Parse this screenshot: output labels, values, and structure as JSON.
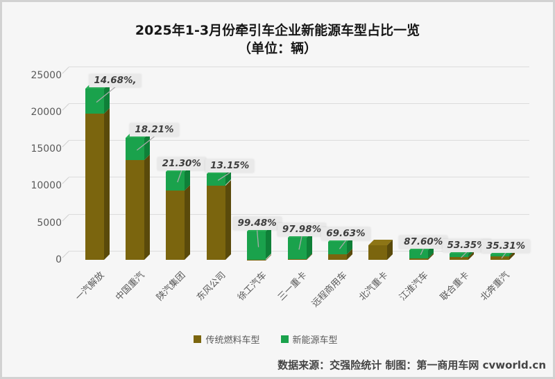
{
  "title": {
    "line1": "2025年1-3月份牵引车企业新能源车型占比一览",
    "line2": "（单位：辆）"
  },
  "chart_data": {
    "type": "bar",
    "stacked": true,
    "style": "3d-column",
    "unit": "辆",
    "categories": [
      "一汽解放",
      "中国重汽",
      "陕汽集团",
      "东风公司",
      "徐工汽车",
      "三一重卡",
      "远程商用车",
      "北汽重卡",
      "江淮汽车",
      "联合重卡",
      "北奔重汽"
    ],
    "series": [
      {
        "name": "传统燃料车型",
        "values": [
          19794,
          13496,
          9365,
          10075,
          20,
          61,
          729,
          1950,
          161,
          397,
          492
        ]
      },
      {
        "name": "新能源车型",
        "values": [
          3406,
          3004,
          2535,
          1525,
          3780,
          2939,
          1671,
          0,
          1139,
          453,
          268
        ]
      }
    ],
    "totals": [
      23200,
      16500,
      11900,
      11600,
      3800,
      3000,
      2400,
      1950,
      1300,
      850,
      760
    ],
    "percent_labels": [
      "14.68%,",
      "18.21%",
      "21.30%",
      "13.15%",
      "99.48%",
      "97.98%",
      "69.63%",
      null,
      "87.60%",
      "53.35%",
      "35.31%"
    ],
    "ylim": [
      0,
      25000
    ],
    "yticks": [
      0,
      5000,
      10000,
      15000,
      20000,
      25000
    ],
    "grid": true,
    "legend_position": "bottom"
  },
  "legend": {
    "items": [
      {
        "label": "传统燃料车型",
        "color": "#7b650e"
      },
      {
        "label": "新能源车型",
        "color": "#1aa24c"
      }
    ]
  },
  "footer": {
    "text": "数据来源：交强险统计  制图：第一商用车网 cvworld.cn"
  },
  "colors": {
    "traditional": {
      "front": "#7b650e",
      "side": "#5a4a0b",
      "top": "#8d7516"
    },
    "new_energy": {
      "front": "#1aa24c",
      "side": "#0f8038",
      "top": "#28b158"
    },
    "grid": "#dcdcdc",
    "axis_text": "#595959",
    "label_text": "#3d3d3d",
    "label_bg": "#e9e9e9",
    "background": "#f6f6f6",
    "leader_line": "#ababab"
  }
}
